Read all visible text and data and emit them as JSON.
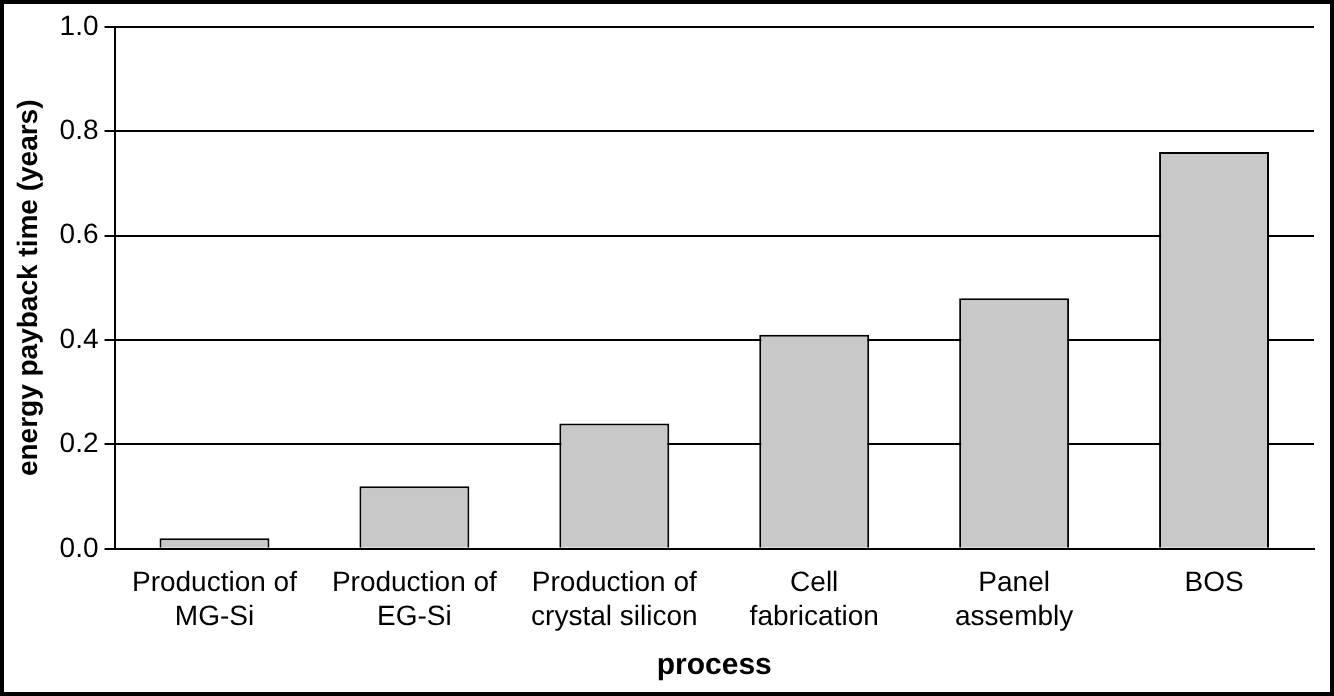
{
  "chart_data": {
    "type": "bar",
    "xlabel": "process",
    "ylabel": "energy payback time (years)",
    "categories": [
      "Production of MG-Si",
      "Production of EG-Si",
      "Production of crystal silicon",
      "Cell fabrication",
      "Panel assembly",
      "BOS"
    ],
    "values": [
      0.02,
      0.12,
      0.24,
      0.41,
      0.48,
      0.76
    ],
    "color": "#c8c8c8",
    "ylim": [
      0,
      1
    ],
    "yticks": [
      {
        "value": 0,
        "label": "0.0"
      },
      {
        "value": 0.2,
        "label": "0.2"
      },
      {
        "value": 0.4,
        "label": "0.4"
      },
      {
        "value": 0.6,
        "label": "0.6"
      },
      {
        "value": 0.8,
        "label": "0.8"
      },
      {
        "value": 1,
        "label": "1.0"
      }
    ],
    "grid": "y",
    "legend": false
  }
}
